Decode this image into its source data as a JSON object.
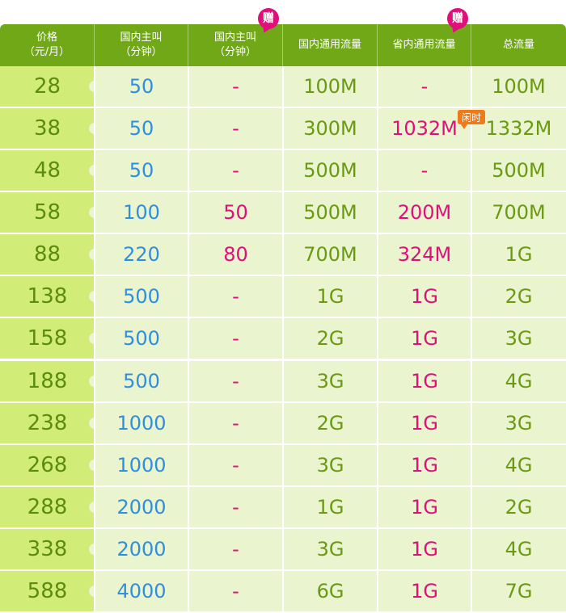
{
  "headers": [
    {
      "line1": "价格",
      "line2": "（元/月）"
    },
    {
      "line1": "国内主叫",
      "line2": "（分钟）"
    },
    {
      "line1": "国内主叫",
      "line2": "（分钟）",
      "badge": "赠"
    },
    {
      "line1": "国内通用流量",
      "line2": ""
    },
    {
      "line1": "省内通用流量",
      "line2": "",
      "badge": "赠"
    },
    {
      "line1": "总流量",
      "line2": ""
    }
  ],
  "idle_tag": "闲时",
  "rows": [
    {
      "price": "28",
      "minutes": "50",
      "bonus_minutes": "-",
      "national_data": "100M",
      "provincial_data": "-",
      "total_data": "100M"
    },
    {
      "price": "38",
      "minutes": "50",
      "bonus_minutes": "-",
      "national_data": "300M",
      "provincial_data": "1032M",
      "total_data": "1332M"
    },
    {
      "price": "48",
      "minutes": "50",
      "bonus_minutes": "-",
      "national_data": "500M",
      "provincial_data": "-",
      "total_data": "500M"
    },
    {
      "price": "58",
      "minutes": "100",
      "bonus_minutes": "50",
      "national_data": "500M",
      "provincial_data": "200M",
      "total_data": "700M"
    },
    {
      "price": "88",
      "minutes": "220",
      "bonus_minutes": "80",
      "national_data": "700M",
      "provincial_data": "324M",
      "total_data": "1G"
    },
    {
      "price": "138",
      "minutes": "500",
      "bonus_minutes": "-",
      "national_data": "1G",
      "provincial_data": "1G",
      "total_data": "2G"
    },
    {
      "price": "158",
      "minutes": "500",
      "bonus_minutes": "-",
      "national_data": "2G",
      "provincial_data": "1G",
      "total_data": "3G"
    },
    {
      "price": "188",
      "minutes": "500",
      "bonus_minutes": "-",
      "national_data": "3G",
      "provincial_data": "1G",
      "total_data": "4G"
    },
    {
      "price": "238",
      "minutes": "1000",
      "bonus_minutes": "-",
      "national_data": "2G",
      "provincial_data": "1G",
      "total_data": "3G"
    },
    {
      "price": "268",
      "minutes": "1000",
      "bonus_minutes": "-",
      "national_data": "3G",
      "provincial_data": "1G",
      "total_data": "4G"
    },
    {
      "price": "288",
      "minutes": "2000",
      "bonus_minutes": "-",
      "national_data": "1G",
      "provincial_data": "1G",
      "total_data": "2G"
    },
    {
      "price": "338",
      "minutes": "2000",
      "bonus_minutes": "-",
      "national_data": "3G",
      "provincial_data": "1G",
      "total_data": "4G"
    },
    {
      "price": "588",
      "minutes": "4000",
      "bonus_minutes": "-",
      "national_data": "6G",
      "provincial_data": "1G",
      "total_data": "7G"
    }
  ],
  "colors": {
    "header_bg": "#71a818",
    "price_bg": "#d2ec78",
    "cell_bg": "#eaf4cf",
    "blue": "#2f8fde",
    "pink": "#e0107a",
    "green": "#6a9a12",
    "idle_tag_bg": "#f07a18"
  }
}
